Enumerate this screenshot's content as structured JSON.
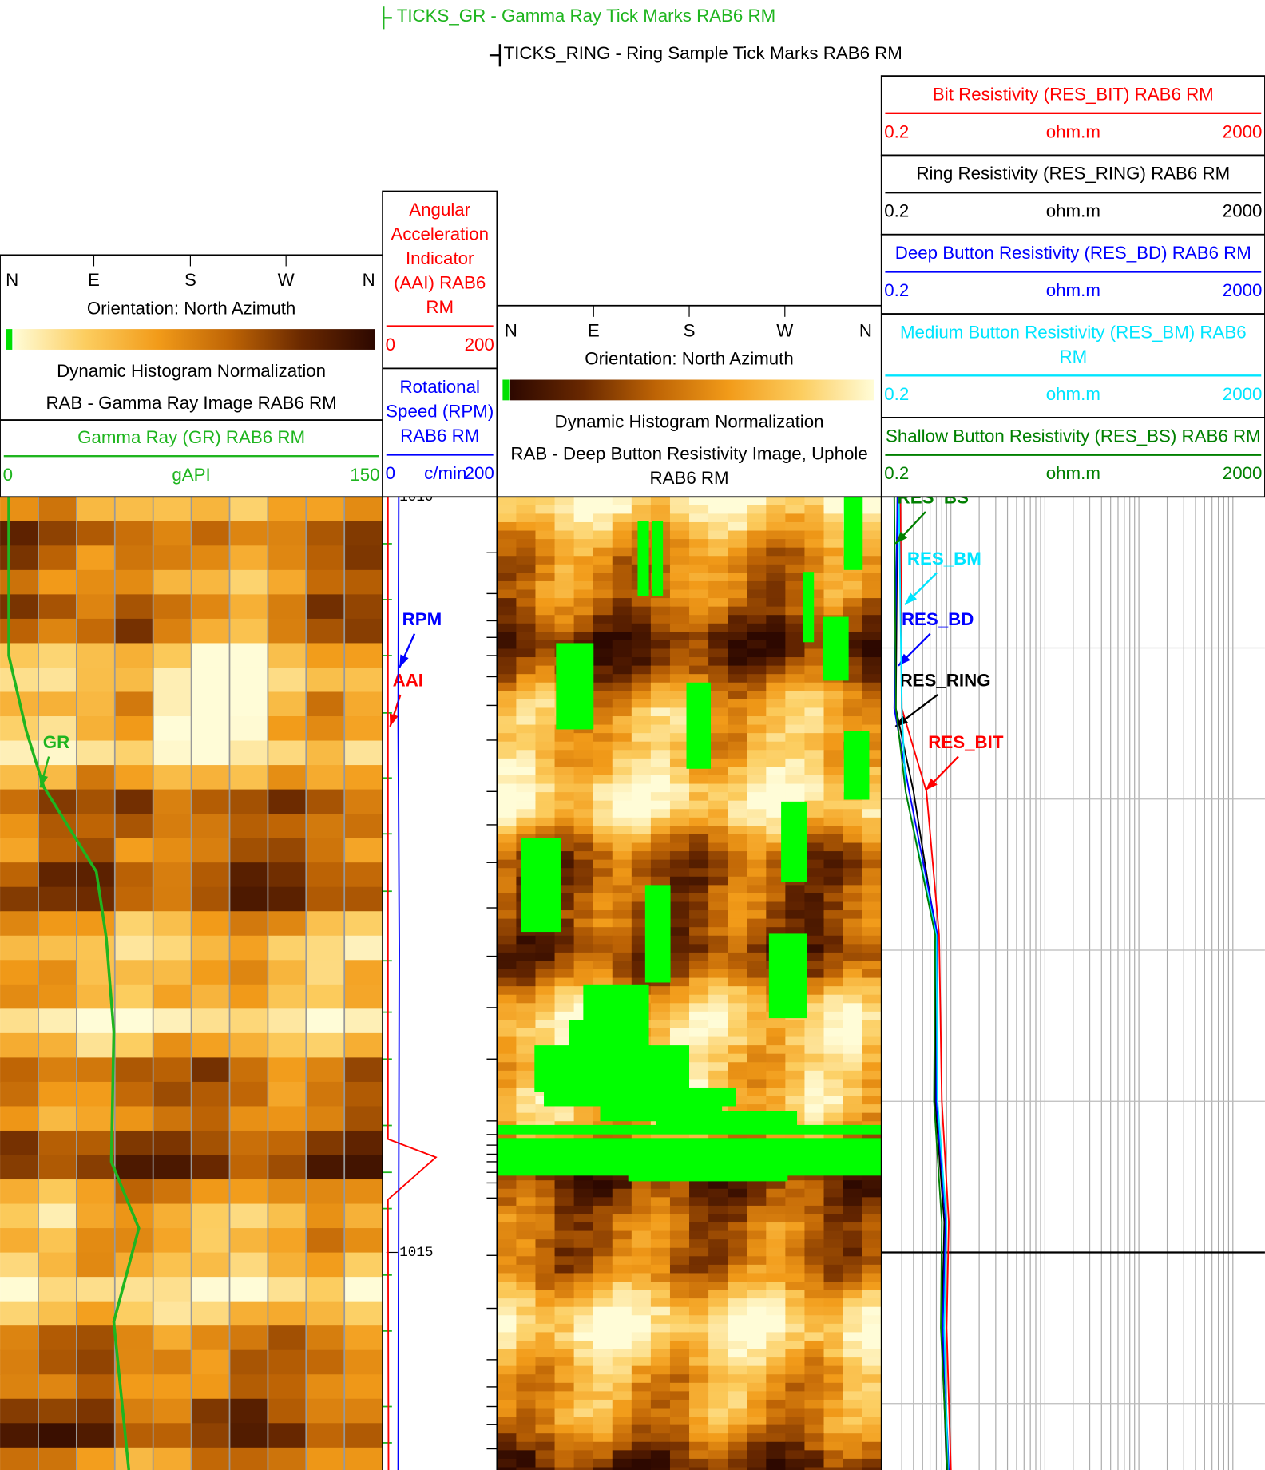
{
  "ticks_legend": {
    "gr": "TICKS_GR - Gamma Ray Tick Marks RAB6 RM",
    "ring": "TICKS_RING - Ring Sample Tick Marks RAB6 RM"
  },
  "images": [
    {
      "compass": [
        "N",
        "E",
        "S",
        "W",
        "N"
      ],
      "orientation": "Orientation: North Azimuth",
      "normalization": "Dynamic Histogram Normalization",
      "title_lines": [
        "RAB - Gamma Ray Image RAB6 RM"
      ]
    },
    {
      "compass": [
        "N",
        "E",
        "S",
        "W",
        "N"
      ],
      "orientation": "Orientation: North Azimuth",
      "normalization": "Dynamic Histogram Normalization",
      "title_lines": [
        "RAB - Deep Button Resistivity Image, Uphole",
        "RAB6 RM"
      ]
    }
  ],
  "depth": {
    "lim": [
      1010,
      1016.44
    ],
    "ticks": [
      1010,
      1015
    ],
    "gridlines": [
      1011,
      1012,
      1013,
      1014,
      1015,
      1016
    ]
  },
  "tick_marks": {
    "gr": [
      1010.31,
      1010.68,
      1011.05,
      1011.43,
      1011.86,
      1012.23,
      1012.61,
      1013.07,
      1013.41,
      1013.72,
      1014.16,
      1014.47,
      1014.71,
      1015.15,
      1015.52,
      1016.02,
      1016.26
    ],
    "ring": [
      1010.37,
      1010.64,
      1010.82,
      1010.93,
      1011.05,
      1011.19,
      1011.38,
      1011.61,
      1011.95,
      1012.17,
      1012.42,
      1012.72,
      1013.04,
      1013.38,
      1013.72,
      1014.13,
      1014.22,
      1014.29,
      1014.35,
      1014.4,
      1014.47,
      1014.54,
      1014.64,
      1015.02,
      1015.37,
      1015.71,
      1015.89,
      1016.02,
      1016.14,
      1016.3
    ]
  },
  "tracks": [
    {
      "curves": [
        {
          "title_lines": [
            "Gamma Ray (GR) RAB6 RM"
          ],
          "unit": "gAPI",
          "scale": [
            0,
            150
          ],
          "color": "#1fb51f",
          "label": "GR",
          "depths": [
            1010,
            1011.05,
            1011.55,
            1011.92,
            1012.48,
            1012.92,
            1013.54,
            1014.4,
            1014.84,
            1015.46,
            1016.44
          ],
          "values": [
            2,
            2,
            9,
            16,
            37,
            41,
            44,
            43,
            54,
            44,
            50
          ]
        }
      ]
    },
    {
      "curves": [
        {
          "title_lines": [
            "Angular",
            "Acceleration",
            "Indicator",
            "(AAI) RAB6",
            "RM"
          ],
          "scale": [
            0,
            200
          ],
          "color": "#ff0000",
          "label": "AAI",
          "depths": [
            1010,
            1014.25,
            1014.37,
            1014.65,
            1016.44
          ],
          "values": [
            3,
            3,
            92,
            3,
            4
          ]
        },
        {
          "title_lines": [
            "Rotational",
            "Speed (RPM)",
            "RAB6 RM"
          ],
          "unit": "c/min",
          "scale": [
            0,
            200
          ],
          "color": "#0000ff",
          "label": "RPM",
          "depths": [
            1010,
            1011.5,
            1013,
            1014.5,
            1016.44
          ],
          "values": [
            23,
            22,
            24,
            23,
            22
          ]
        }
      ]
    },
    {
      "log": true,
      "curves": [
        {
          "title_lines": [
            "Bit Resistivity (RES_BIT) RAB6 RM"
          ],
          "unit": "ohm.m",
          "scale": [
            0.2,
            2000
          ],
          "color": "#ff0000",
          "label": "RES_BIT",
          "depths": [
            1010,
            1011.4,
            1011.95,
            1012.9,
            1014.0,
            1014.8,
            1015.5,
            1016.44
          ],
          "values": [
            0.29,
            0.3,
            0.55,
            0.75,
            0.8,
            0.95,
            0.9,
            1.0
          ]
        },
        {
          "title_lines": [
            "Ring Resistivity (RES_RING) RAB6 RM"
          ],
          "unit": "ohm.m",
          "scale": [
            0.2,
            2000
          ],
          "color": "#000000",
          "label": "RES_RING",
          "depths": [
            1010,
            1011.4,
            1011.95,
            1012.9,
            1014.0,
            1014.8,
            1015.5,
            1016.44
          ],
          "values": [
            0.27,
            0.26,
            0.4,
            0.7,
            0.68,
            0.85,
            0.8,
            0.9
          ]
        },
        {
          "title_lines": [
            "Deep Button Resistivity (RES_BD) RAB6 RM"
          ],
          "unit": "ohm.m",
          "scale": [
            0.2,
            2000
          ],
          "color": "#0000ff",
          "label": "RES_BD",
          "depths": [
            1010,
            1011.4,
            1011.95,
            1012.9,
            1014.0,
            1014.8,
            1015.5,
            1016.44
          ],
          "values": [
            0.27,
            0.25,
            0.36,
            0.72,
            0.7,
            0.88,
            0.82,
            0.95
          ]
        },
        {
          "title_lines": [
            "Medium Button Resistivity (RES_BM) RAB6",
            "RM"
          ],
          "unit": "ohm.m",
          "scale": [
            0.2,
            2000
          ],
          "color": "#00e5ff",
          "label": "RES_BM",
          "depths": [
            1010,
            1011.4,
            1011.95,
            1012.9,
            1014.0,
            1014.8,
            1015.5,
            1016.44
          ],
          "values": [
            0.28,
            0.3,
            0.33,
            0.7,
            0.72,
            0.9,
            0.85,
            0.93
          ]
        },
        {
          "title_lines": [
            "Shallow Button Resistivity (RES_BS) RAB6 RM"
          ],
          "unit": "ohm.m",
          "scale": [
            0.2,
            2000
          ],
          "color": "#008000",
          "label": "RES_BS",
          "depths": [
            1010,
            1011.4,
            1011.95,
            1012.9,
            1014.0,
            1014.8,
            1015.5,
            1016.44
          ],
          "values": [
            0.25,
            0.26,
            0.33,
            0.68,
            0.66,
            0.8,
            0.78,
            0.92
          ]
        }
      ]
    }
  ]
}
